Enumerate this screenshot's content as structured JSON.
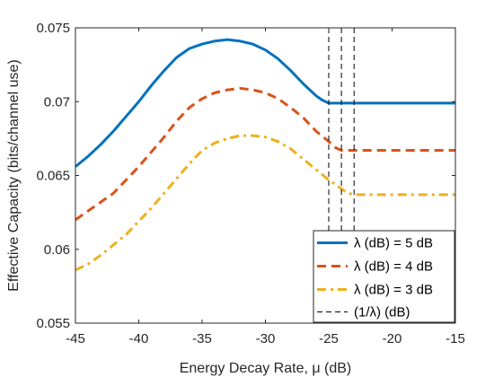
{
  "chart_data": {
    "type": "line",
    "xlabel": "Energy Decay Rate, μ (dB)",
    "ylabel": "Effective Capacity (bits/channel use)",
    "xlim": [
      -45,
      -15
    ],
    "ylim": [
      0.055,
      0.075
    ],
    "xticks": [
      -45,
      -40,
      -35,
      -30,
      -25,
      -20,
      -15
    ],
    "xtick_labels": [
      "-45",
      "-40",
      "-35",
      "-30",
      "-25",
      "-20",
      "-15"
    ],
    "yticks": [
      0.055,
      0.06,
      0.065,
      0.07,
      0.075
    ],
    "ytick_labels": [
      "0.055",
      "0.06",
      "0.065",
      "0.07",
      "0.075"
    ],
    "grid": false,
    "legend_position": "bottom-right",
    "series": [
      {
        "name": "λ (dB) = 5 dB",
        "color": "#0072BD",
        "style": "solid",
        "x": [
          -45,
          -44,
          -43,
          -42,
          -41,
          -40,
          -39,
          -38,
          -37,
          -36,
          -35,
          -34,
          -33,
          -32,
          -31,
          -30,
          -29,
          -28,
          -27,
          -26,
          -25.5,
          -25,
          -24,
          -23,
          -22,
          -21,
          -20,
          -19,
          -18,
          -17,
          -16,
          -15
        ],
        "y": [
          0.0656,
          0.0663,
          0.0671,
          0.068,
          0.069,
          0.07,
          0.0711,
          0.0721,
          0.073,
          0.0736,
          0.0739,
          0.0741,
          0.0742,
          0.0741,
          0.0739,
          0.0735,
          0.0729,
          0.0721,
          0.0712,
          0.0704,
          0.0701,
          0.0699,
          0.0699,
          0.0699,
          0.0699,
          0.0699,
          0.0699,
          0.0699,
          0.0699,
          0.0699,
          0.0699,
          0.0699
        ]
      },
      {
        "name": "λ (dB) = 4 dB",
        "color": "#D95319",
        "style": "dashed",
        "x": [
          -45,
          -44,
          -43,
          -42,
          -41,
          -40,
          -39,
          -38,
          -37,
          -36,
          -35,
          -34,
          -33,
          -32,
          -31,
          -30,
          -29,
          -28,
          -27,
          -26,
          -25,
          -24.5,
          -24,
          -23,
          -22,
          -21,
          -20,
          -19,
          -18,
          -17,
          -16,
          -15
        ],
        "y": [
          0.062,
          0.0626,
          0.0632,
          0.0638,
          0.0647,
          0.0656,
          0.0666,
          0.0676,
          0.0687,
          0.0696,
          0.0702,
          0.0706,
          0.0708,
          0.0709,
          0.0708,
          0.0706,
          0.0702,
          0.0696,
          0.0689,
          0.068,
          0.0673,
          0.0669,
          0.0667,
          0.0667,
          0.0667,
          0.0667,
          0.0667,
          0.0667,
          0.0667,
          0.0667,
          0.0667,
          0.0667
        ]
      },
      {
        "name": "λ (dB) = 3 dB",
        "color": "#EDB120",
        "style": "dash-dot",
        "x": [
          -45,
          -44,
          -43,
          -42,
          -41,
          -40,
          -39,
          -38,
          -37,
          -36,
          -35,
          -34,
          -33,
          -32,
          -31,
          -30,
          -29,
          -28,
          -27,
          -26,
          -25,
          -24,
          -23.5,
          -23,
          -22,
          -21,
          -20,
          -19,
          -18,
          -17,
          -16,
          -15
        ],
        "y": [
          0.0586,
          0.059,
          0.0596,
          0.0603,
          0.061,
          0.0619,
          0.0628,
          0.0638,
          0.0648,
          0.0658,
          0.0667,
          0.0672,
          0.0675,
          0.0677,
          0.0677,
          0.0676,
          0.0673,
          0.0668,
          0.0661,
          0.0654,
          0.0647,
          0.0641,
          0.0638,
          0.0637,
          0.0637,
          0.0637,
          0.0637,
          0.0637,
          0.0637,
          0.0637,
          0.0637,
          0.0637
        ]
      }
    ],
    "vlines": {
      "name": "(1/λ) (dB)",
      "color": "#000000",
      "style": "dashed",
      "x": [
        -25,
        -24,
        -23
      ]
    }
  }
}
